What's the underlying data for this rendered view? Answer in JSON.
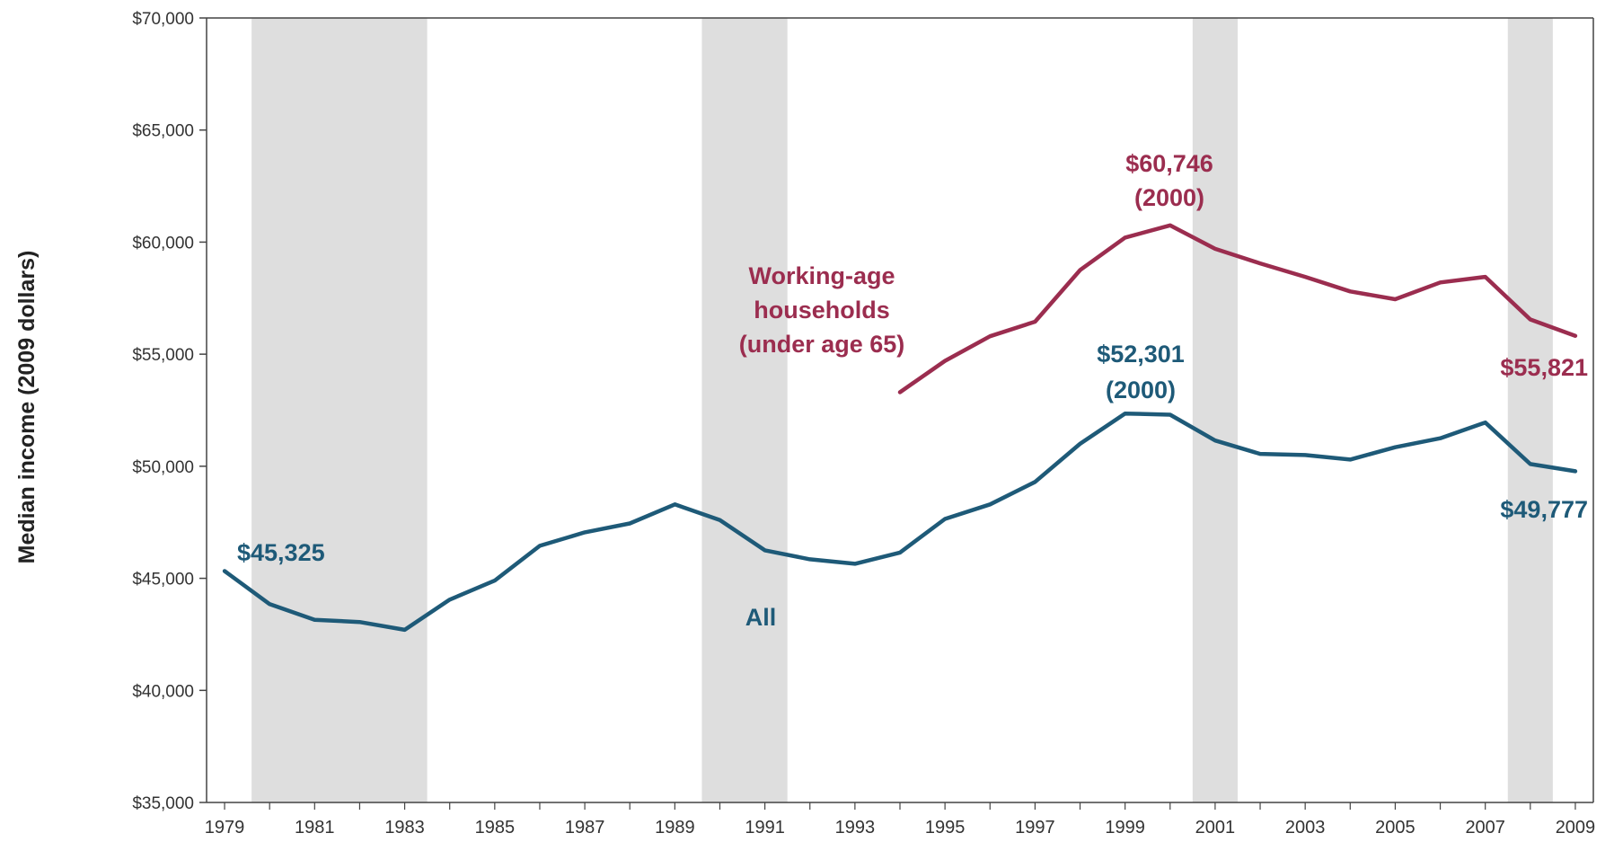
{
  "chart_data": {
    "type": "line",
    "ylabel": "Median income (2009 dollars)",
    "xlabel": "",
    "title": "",
    "ylim": [
      35000,
      70000
    ],
    "xlim": [
      1978.6,
      2009.4
    ],
    "y_ticks": [
      35000,
      40000,
      45000,
      50000,
      55000,
      60000,
      65000,
      70000
    ],
    "y_tick_labels": [
      "$35,000",
      "$40,000",
      "$45,000",
      "$50,000",
      "$55,000",
      "$60,000",
      "$65,000",
      "$70,000"
    ],
    "x_ticks": [
      1979,
      1981,
      1983,
      1985,
      1987,
      1989,
      1991,
      1993,
      1995,
      1997,
      1999,
      2001,
      2003,
      2005,
      2007,
      2009
    ],
    "x_tick_labels": [
      "1979",
      "1981",
      "1983",
      "1985",
      "1987",
      "1989",
      "1991",
      "1993",
      "1995",
      "1997",
      "1999",
      "2001",
      "2003",
      "2005",
      "2007",
      "2009"
    ],
    "grid": false,
    "recession_bands": [
      {
        "start": 1979.6,
        "end": 1983.5
      },
      {
        "start": 1989.6,
        "end": 1991.5
      },
      {
        "start": 2000.5,
        "end": 2001.5
      },
      {
        "start": 2007.5,
        "end": 2008.5
      }
    ],
    "series": [
      {
        "key": "all",
        "color": "#1e5a78",
        "x": [
          1979,
          1980,
          1981,
          1982,
          1983,
          1984,
          1985,
          1986,
          1987,
          1988,
          1989,
          1990,
          1991,
          1992,
          1993,
          1994,
          1995,
          1996,
          1997,
          1998,
          1999,
          2000,
          2001,
          2002,
          2003,
          2004,
          2005,
          2006,
          2007,
          2008,
          2009
        ],
        "values": [
          45325,
          43850,
          43150,
          43050,
          42700,
          44050,
          44900,
          46450,
          47050,
          47450,
          48300,
          47600,
          46250,
          45850,
          45650,
          46150,
          47650,
          48300,
          49300,
          51000,
          52350,
          52301,
          51150,
          50550,
          50500,
          50300,
          50850,
          51250,
          51950,
          50100,
          49777
        ]
      },
      {
        "key": "working_age",
        "color": "#9b2d4f",
        "x": [
          1994,
          1995,
          1996,
          1997,
          1998,
          1999,
          2000,
          2001,
          2002,
          2003,
          2004,
          2005,
          2006,
          2007,
          2008,
          2009
        ],
        "values": [
          53300,
          54700,
          55800,
          56450,
          58750,
          60200,
          60746,
          59700,
          59050,
          58450,
          57800,
          57450,
          58200,
          58450,
          56550,
          55821
        ]
      }
    ],
    "annotations": {
      "start_all": {
        "text": "$45,325",
        "color": "#1e5a78"
      },
      "all_label": {
        "text": "All",
        "color": "#1e5a78"
      },
      "working_label": {
        "lines": [
          "Working-age",
          "households",
          "(under age 65)"
        ],
        "color": "#9b2d4f"
      },
      "peak_working": {
        "lines": [
          "$60,746",
          "(2000)"
        ],
        "color": "#9b2d4f"
      },
      "peak_all": {
        "lines": [
          "$52,301",
          "(2000)"
        ],
        "color": "#1e5a78"
      },
      "end_working": {
        "text": "$55,821",
        "color": "#9b2d4f"
      },
      "end_all": {
        "text": "$49,777",
        "color": "#1e5a78"
      }
    },
    "colors": {
      "recession": "#dedede",
      "axis": "#444444"
    }
  }
}
